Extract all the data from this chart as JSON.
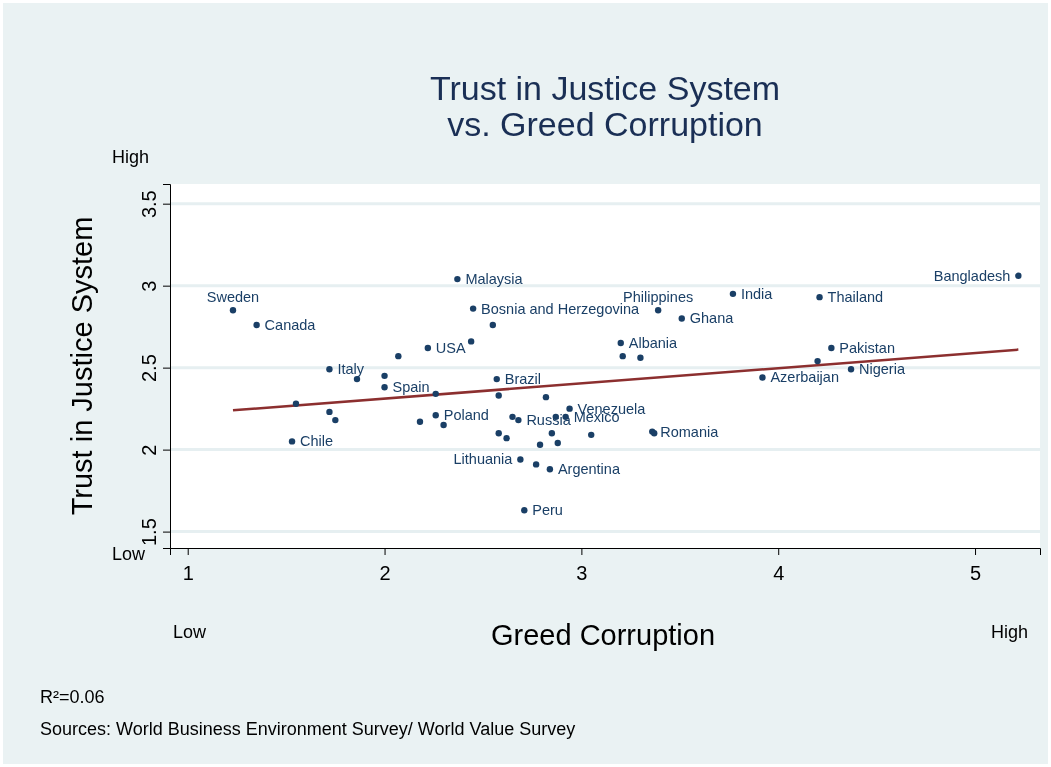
{
  "chart_data": {
    "type": "scatter",
    "title": "Trust in Justice System\nvs. Greed Corruption",
    "xlabel": "Greed Corruption",
    "ylabel": "Trust in Justice System",
    "xlim": [
      0.91,
      5.33
    ],
    "ylim": [
      1.4,
      3.62
    ],
    "xticks": [
      1,
      2,
      3,
      4,
      5
    ],
    "yticks": [
      1.5,
      2,
      2.5,
      3,
      3.5
    ],
    "grid": "y",
    "annotations": [
      "High",
      "Low",
      "Low",
      "High",
      "R²=0.06",
      "Sources: World Business Environment Survey/ World Value Survey"
    ],
    "series": [
      {
        "type": "scatter",
        "marker": "circle",
        "color": "#1a3f66",
        "x": [
          1.23,
          1.35,
          1.53,
          1.72,
          2.0,
          2.22,
          2.37,
          2.45,
          2.57,
          2.26,
          2.68,
          2.92,
          2.94,
          2.69,
          2.84,
          2.71,
          3.2,
          3.39,
          3.51,
          3.77,
          4.21,
          5.22,
          4.27,
          4.37,
          3.92,
          3.36,
          3.37,
          1.55,
          1.72,
          1.75,
          1.86,
          2.0,
          2.07,
          2.44,
          2.26,
          2.18,
          2.3,
          2.55,
          2.58,
          2.82,
          2.65,
          2.87,
          2.58,
          2.62,
          2.85,
          2.79,
          2.88,
          3.05,
          2.77,
          3.21,
          3.3,
          4.2
        ],
        "values": [
          2.85,
          2.76,
          2.05,
          2.49,
          2.38,
          2.62,
          3.04,
          2.86,
          2.43,
          2.21,
          2.18,
          2.2,
          2.25,
          1.94,
          1.88,
          1.63,
          2.65,
          2.85,
          2.8,
          2.95,
          2.93,
          3.06,
          2.62,
          2.49,
          2.44,
          2.11,
          2.1,
          2.28,
          2.23,
          2.18,
          2.43,
          2.45,
          2.57,
          2.66,
          2.34,
          2.17,
          2.15,
          2.76,
          2.33,
          2.32,
          2.2,
          2.2,
          2.1,
          2.07,
          2.1,
          2.03,
          2.04,
          2.09,
          1.91,
          2.57,
          2.56,
          2.54
        ],
        "value_labels": [
          "Sweden",
          "Canada",
          "Chile",
          "Italy",
          "Spain",
          "USA",
          "Malaysia",
          "Bosnia and Herzegovina",
          "Brazil",
          "Poland",
          "Russia",
          "Mexico",
          "Venezuela",
          "Lithuania",
          "Argentina",
          "Peru",
          "Albania",
          "Philippines",
          "Ghana",
          "India",
          "Thailand",
          "Bangladesh",
          "Pakistan",
          "Nigeria",
          "Azerbaijan",
          "Romania",
          null,
          null,
          null,
          null,
          null,
          null,
          null,
          null,
          null,
          null,
          null,
          null,
          null,
          null,
          null,
          null,
          null,
          null,
          null,
          null,
          null,
          null,
          null,
          null,
          null,
          null
        ]
      },
      {
        "type": "line",
        "marker": "none",
        "color": "#8c2f2f",
        "x": [
          1.23,
          5.22
        ],
        "values": [
          2.24,
          2.61
        ]
      }
    ]
  }
}
